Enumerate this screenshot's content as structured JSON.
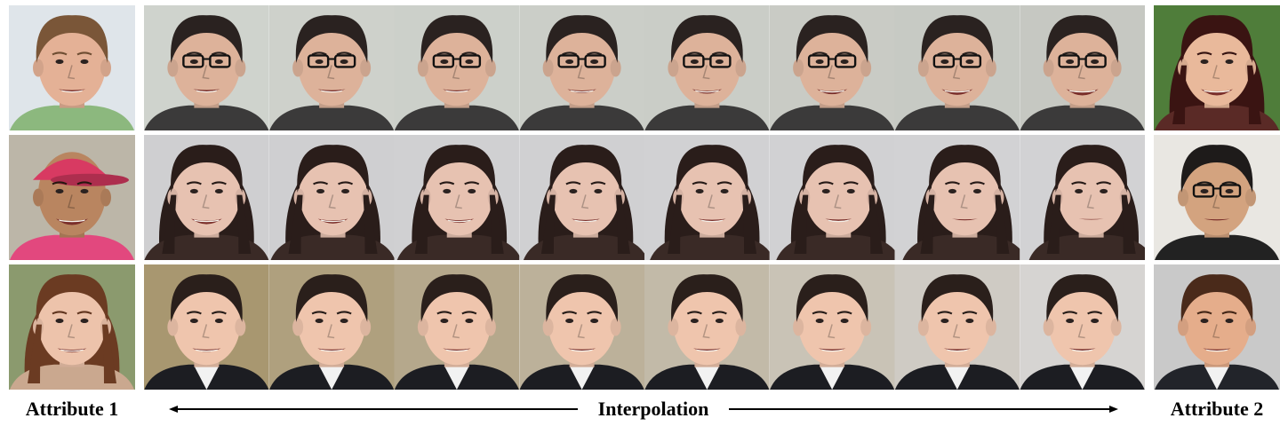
{
  "labels": {
    "left": "Attribute 1",
    "center": "Interpolation",
    "right": "Attribute 2"
  },
  "rows": [
    {
      "left": {
        "subject": "man-smiling",
        "bg": "#dfe5ea",
        "skin": "#e4b196",
        "hair": "#7a5638",
        "shirt": "#8cb87e"
      },
      "interp": {
        "subject": "man-glasses",
        "bg_start": "#cfd3cd",
        "bg_end": "#c6c8c2",
        "skin": "#ddb29a",
        "hair": "#2a2220",
        "shirt": "#3b3a3a",
        "glasses": true
      },
      "right": {
        "subject": "woman-laughing",
        "bg": "#4f7d3a",
        "skin": "#e9b99b",
        "hair": "#3a1412",
        "shirt": "#5a2a26"
      }
    },
    {
      "left": {
        "subject": "child-cap",
        "bg": "#bcb6a8",
        "skin": "#b98560",
        "hair": "#2b1a12",
        "shirt": "#e2487e",
        "cap": "#d83a62"
      },
      "interp": {
        "subject": "woman-long-hair",
        "bg_start": "#cfcfd1",
        "bg_end": "#d2d2d4",
        "skin": "#e7c2b1",
        "hair": "#2a1d1a",
        "shirt": "#3a2a26"
      },
      "right": {
        "subject": "man-asian-glasses",
        "bg": "#e9e7e2",
        "skin": "#d3a37f",
        "hair": "#1e1b1a",
        "shirt": "#222222",
        "glasses": true
      }
    },
    {
      "left": {
        "subject": "woman-smiling",
        "bg": "#8b9a6e",
        "skin": "#edc3ab",
        "hair": "#6b3b22",
        "shirt": "#caa88f"
      },
      "interp": {
        "subject": "man-suit",
        "bg_start": "#a89770",
        "bg_end": "#d6d4d2",
        "skin": "#efc5ad",
        "hair": "#2a1f1b",
        "shirt": "#1c1d22"
      },
      "right": {
        "subject": "man-suit-young",
        "bg": "#c9c9c9",
        "skin": "#e5ad8b",
        "hair": "#4a2a1a",
        "shirt": "#22242a"
      }
    }
  ]
}
